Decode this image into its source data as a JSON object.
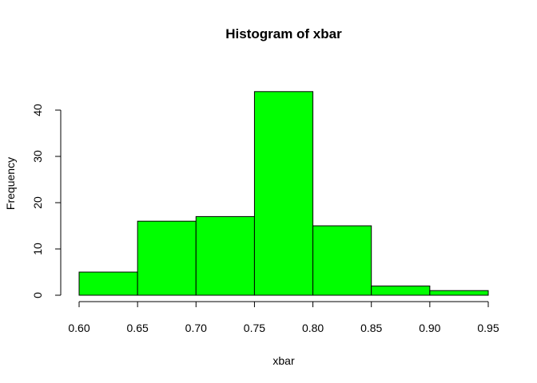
{
  "chart_data": {
    "type": "bar",
    "title": "Histogram of xbar",
    "xlabel": "xbar",
    "ylabel": "Frequency",
    "bins": [
      {
        "from": 0.6,
        "to": 0.65,
        "count": 5
      },
      {
        "from": 0.65,
        "to": 0.7,
        "count": 16
      },
      {
        "from": 0.7,
        "to": 0.75,
        "count": 17
      },
      {
        "from": 0.75,
        "to": 0.8,
        "count": 44
      },
      {
        "from": 0.8,
        "to": 0.85,
        "count": 15
      },
      {
        "from": 0.85,
        "to": 0.9,
        "count": 2
      },
      {
        "from": 0.9,
        "to": 0.95,
        "count": 1
      }
    ],
    "xlim": [
      0.6,
      0.95
    ],
    "ylim": [
      0,
      44
    ],
    "xticks": [
      "0.60",
      "0.65",
      "0.70",
      "0.75",
      "0.80",
      "0.85",
      "0.90",
      "0.95"
    ],
    "yticks": [
      "0",
      "10",
      "20",
      "30",
      "40"
    ],
    "bar_color": "#00FF00",
    "grid": false
  }
}
